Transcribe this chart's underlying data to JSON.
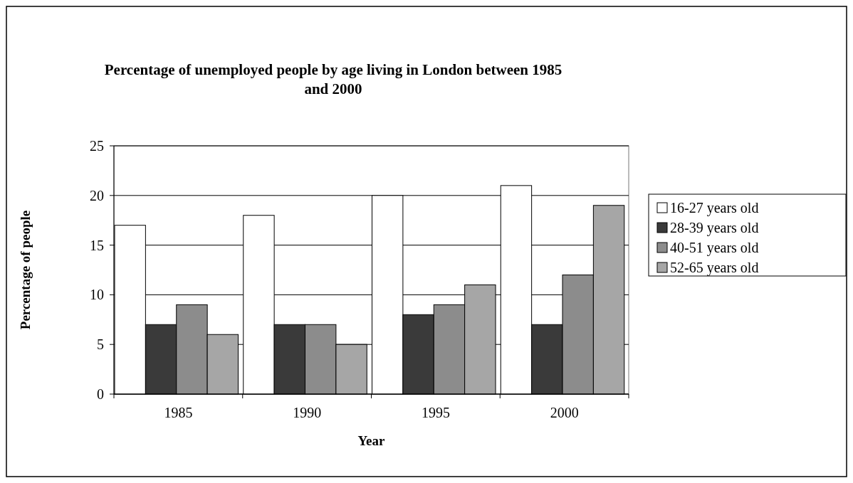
{
  "chart_data": {
    "type": "bar",
    "title": "Percentage of unemployed people by age living in London between 1985 and 2000",
    "xlabel": "Year",
    "ylabel": "Percentage of people",
    "categories": [
      "1985",
      "1990",
      "1995",
      "2000"
    ],
    "series": [
      {
        "name": "16-27 years old",
        "color": "#ffffff",
        "values": [
          17,
          18,
          20,
          21
        ]
      },
      {
        "name": "28-39 years old",
        "color": "#3a3a3a",
        "values": [
          7,
          7,
          8,
          7
        ]
      },
      {
        "name": "40-51 years old",
        "color": "#8c8c8c",
        "values": [
          9,
          7,
          9,
          12
        ]
      },
      {
        "name": "52-65 years old",
        "color": "#a6a6a6",
        "values": [
          6,
          5,
          11,
          19
        ]
      }
    ],
    "ylim": [
      0,
      25
    ],
    "yticks": [
      0,
      5,
      10,
      15,
      20,
      25
    ],
    "grid": "y",
    "legend": "right"
  }
}
